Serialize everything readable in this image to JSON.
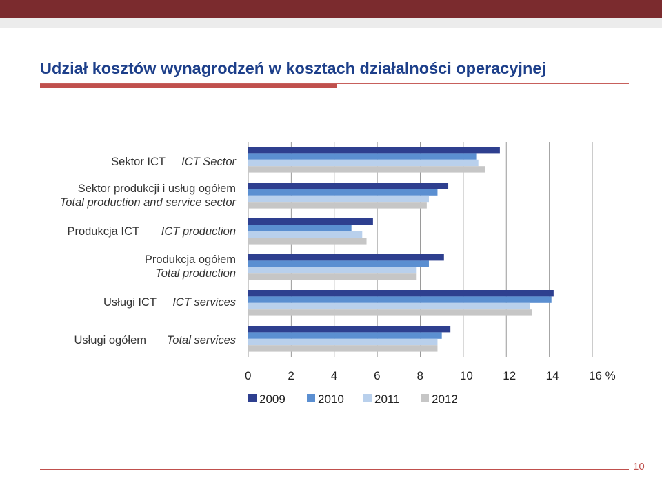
{
  "slide": {
    "title": "Udział kosztów wynagrodzeń w kosztach działalności operacyjnej",
    "page_number": "10"
  },
  "colors": {
    "top_band": "#7b2b2e",
    "title": "#1d3f8a",
    "accent_rule": "#c0504d",
    "series": [
      "#2e3f8f",
      "#5b8fd1",
      "#b9d0ec",
      "#c6c6c6"
    ]
  },
  "chart_data": {
    "type": "bar",
    "orientation": "horizontal",
    "categories": [
      {
        "pl": "Sektor ICT",
        "en": "ICT Sector"
      },
      {
        "pl": "Sektor produkcji i usług ogółem",
        "en": "Total production and service sector"
      },
      {
        "pl": "Produkcja ICT",
        "en": "ICT production"
      },
      {
        "pl": "Produkcja ogółem",
        "en": "Total production"
      },
      {
        "pl": "Usługi ICT",
        "en": "ICT services"
      },
      {
        "pl": "Usługi ogółem",
        "en": "Total services"
      }
    ],
    "series": [
      {
        "name": "2009",
        "values": [
          11.7,
          9.3,
          5.8,
          9.1,
          14.2,
          9.4
        ]
      },
      {
        "name": "2010",
        "values": [
          10.6,
          8.8,
          4.8,
          8.4,
          14.1,
          9.0
        ]
      },
      {
        "name": "2011",
        "values": [
          10.7,
          8.4,
          5.3,
          7.8,
          13.1,
          8.8
        ]
      },
      {
        "name": "2012",
        "values": [
          11.0,
          8.3,
          5.5,
          7.8,
          13.2,
          8.8
        ]
      }
    ],
    "x_ticks": [
      "0",
      "2",
      "4",
      "6",
      "8",
      "10",
      "12",
      "14",
      "16 %"
    ],
    "xlim": [
      0,
      16
    ],
    "grid": true,
    "legend_position": "bottom"
  }
}
